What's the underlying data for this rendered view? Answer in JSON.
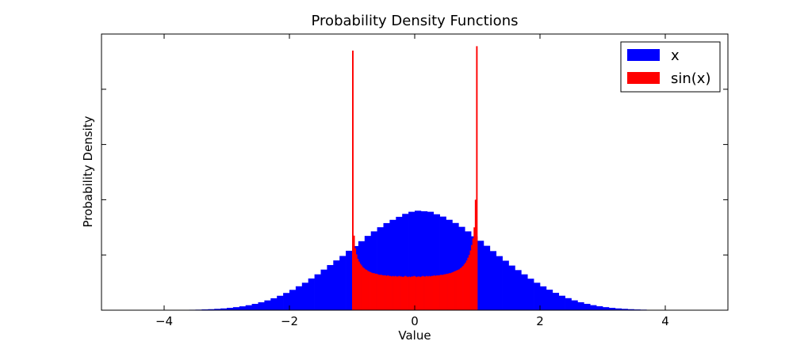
{
  "chart_data": {
    "type": "bar",
    "title": "Probability Density Functions",
    "xlabel": "Value",
    "ylabel": "Probability Density",
    "xlim": [
      -5,
      5
    ],
    "ylim": [
      0,
      0.5
    ],
    "xticks": [
      -4,
      -2,
      0,
      2,
      4
    ],
    "xtick_labels": [
      "−4",
      "−2",
      "0",
      "2",
      "4"
    ],
    "yticks": [
      0.1,
      0.2,
      0.3,
      0.4
    ],
    "ytick_labels_shown": false,
    "grid": false,
    "legend_position": "top-right",
    "series": [
      {
        "name": "x",
        "color": "#0000ff",
        "bin_edges": [
          -4.3,
          -4.2,
          -4.1,
          -4.0,
          -3.9,
          -3.8,
          -3.7,
          -3.6,
          -3.5,
          -3.4,
          -3.3,
          -3.2,
          -3.1,
          -3.0,
          -2.9,
          -2.8,
          -2.7,
          -2.6,
          -2.5,
          -2.4,
          -2.3,
          -2.2,
          -2.1,
          -2.0,
          -1.9,
          -1.8,
          -1.7,
          -1.6,
          -1.5,
          -1.4,
          -1.3,
          -1.2,
          -1.1,
          -1.0,
          -0.9,
          -0.8,
          -0.7,
          -0.6,
          -0.5,
          -0.4,
          -0.3,
          -0.2,
          -0.1,
          0.0,
          0.1,
          0.2,
          0.3,
          0.4,
          0.5,
          0.6,
          0.7,
          0.8,
          0.9,
          1.0,
          1.1,
          1.2,
          1.3,
          1.4,
          1.5,
          1.6,
          1.7,
          1.8,
          1.9,
          2.0,
          2.1,
          2.2,
          2.3,
          2.4,
          2.5,
          2.6,
          2.7,
          2.8,
          2.9,
          3.0,
          3.1,
          3.2,
          3.3,
          3.4,
          3.5,
          3.6,
          3.7,
          3.8,
          3.9,
          4.0,
          4.1,
          4.2,
          4.3,
          4.4,
          4.5
        ],
        "values": [
          0.0001,
          0.0001,
          0.0002,
          0.0002,
          0.0003,
          0.0004,
          0.0006,
          0.0008,
          0.001,
          0.0014,
          0.0018,
          0.0024,
          0.0032,
          0.0042,
          0.0055,
          0.007,
          0.009,
          0.0114,
          0.0143,
          0.0177,
          0.0216,
          0.0261,
          0.0312,
          0.0368,
          0.0433,
          0.0497,
          0.0574,
          0.0649,
          0.0735,
          0.0817,
          0.0901,
          0.0982,
          0.1076,
          0.1161,
          0.1249,
          0.1345,
          0.1427,
          0.1502,
          0.1577,
          0.1636,
          0.169,
          0.1744,
          0.1782,
          0.1801,
          0.1791,
          0.1782,
          0.1737,
          0.1695,
          0.1637,
          0.1579,
          0.1509,
          0.1427,
          0.1338,
          0.1257,
          0.1166,
          0.107,
          0.0979,
          0.0896,
          0.0808,
          0.0726,
          0.0649,
          0.057,
          0.0497,
          0.0431,
          0.0371,
          0.0314,
          0.0262,
          0.0218,
          0.0178,
          0.0144,
          0.0115,
          0.0091,
          0.0071,
          0.0055,
          0.0042,
          0.0032,
          0.0024,
          0.0018,
          0.0013,
          0.001,
          0.0007,
          0.0005,
          0.0004,
          0.0003,
          0.0002,
          0.0001,
          0.0001,
          0.0001
        ]
      },
      {
        "name": "sin(x)",
        "color": "#ff0000",
        "bin_edges": [
          -1.0,
          -0.98,
          -0.96,
          -0.94,
          -0.92,
          -0.9,
          -0.88,
          -0.86,
          -0.84,
          -0.82,
          -0.8,
          -0.78,
          -0.76,
          -0.74,
          -0.72,
          -0.7,
          -0.68,
          -0.66,
          -0.64,
          -0.62,
          -0.6,
          -0.58,
          -0.56,
          -0.54,
          -0.52,
          -0.5,
          -0.48,
          -0.46,
          -0.44,
          -0.42,
          -0.4,
          -0.38,
          -0.36,
          -0.34,
          -0.32,
          -0.3,
          -0.28,
          -0.26,
          -0.24,
          -0.22,
          -0.2,
          -0.18,
          -0.16,
          -0.14,
          -0.12,
          -0.1,
          -0.08,
          -0.06,
          -0.04,
          -0.02,
          0.0,
          0.02,
          0.04,
          0.06,
          0.08,
          0.1,
          0.12,
          0.14,
          0.16,
          0.18,
          0.2,
          0.22,
          0.24,
          0.26,
          0.28,
          0.3,
          0.32,
          0.34,
          0.36,
          0.38,
          0.4,
          0.42,
          0.44,
          0.46,
          0.48,
          0.5,
          0.52,
          0.54,
          0.56,
          0.58,
          0.6,
          0.62,
          0.64,
          0.66,
          0.68,
          0.7,
          0.72,
          0.74,
          0.76,
          0.78,
          0.8,
          0.82,
          0.84,
          0.86,
          0.88,
          0.9,
          0.92,
          0.94,
          0.96,
          0.98,
          1.0
        ],
        "values": [
          0.47,
          0.135,
          0.112,
          0.101,
          0.093,
          0.088,
          0.084,
          0.081,
          0.078,
          0.076,
          0.074,
          0.073,
          0.071,
          0.07,
          0.069,
          0.068,
          0.067,
          0.067,
          0.066,
          0.066,
          0.065,
          0.064,
          0.064,
          0.064,
          0.063,
          0.063,
          0.063,
          0.062,
          0.063,
          0.062,
          0.062,
          0.061,
          0.062,
          0.061,
          0.062,
          0.061,
          0.061,
          0.062,
          0.061,
          0.061,
          0.06,
          0.061,
          0.062,
          0.061,
          0.06,
          0.061,
          0.06,
          0.061,
          0.061,
          0.062,
          0.061,
          0.06,
          0.061,
          0.061,
          0.06,
          0.061,
          0.062,
          0.061,
          0.061,
          0.062,
          0.061,
          0.062,
          0.061,
          0.062,
          0.062,
          0.063,
          0.062,
          0.063,
          0.063,
          0.063,
          0.064,
          0.064,
          0.064,
          0.065,
          0.065,
          0.066,
          0.066,
          0.067,
          0.067,
          0.068,
          0.069,
          0.07,
          0.071,
          0.072,
          0.073,
          0.074,
          0.076,
          0.078,
          0.08,
          0.083,
          0.086,
          0.09,
          0.095,
          0.1,
          0.108,
          0.118,
          0.13,
          0.15,
          0.2,
          0.478
        ]
      }
    ]
  }
}
